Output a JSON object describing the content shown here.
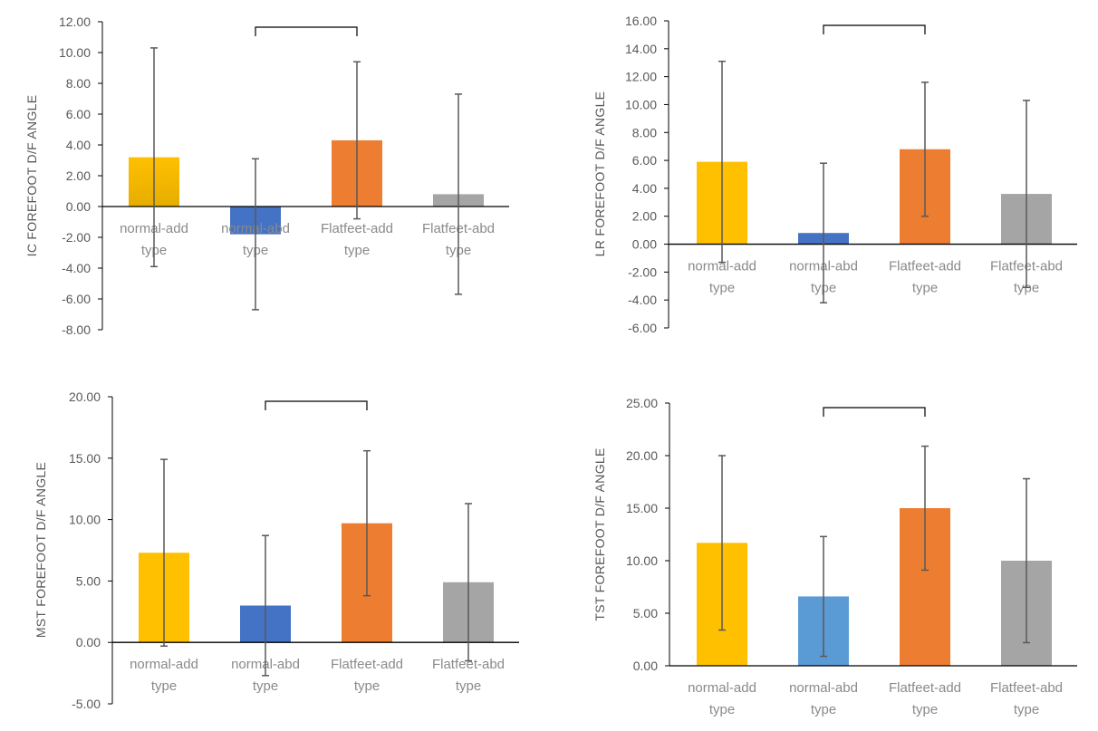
{
  "chart_data": [
    {
      "type": "bar",
      "ylabel": "IC FOREFOOT D/F ANGLE",
      "categories": [
        [
          "normal-add",
          "type"
        ],
        [
          "normal-abd",
          "type"
        ],
        [
          "Flatfeet-add",
          "type"
        ],
        [
          "Flatfeet-abd",
          "type"
        ]
      ],
      "values": [
        3.2,
        -1.8,
        4.3,
        0.8
      ],
      "errors": [
        7.1,
        4.9,
        5.1,
        6.5
      ],
      "ylim": [
        -8,
        12
      ],
      "ytick_step": 2,
      "tick_labels": [
        "-8.00",
        "-6.00",
        "-4.00",
        "-2.00",
        "0.00",
        "2.00",
        "4.00",
        "6.00",
        "8.00",
        "10.00",
        "12.00"
      ],
      "bracket": {
        "from": 1,
        "to": 2
      },
      "colors": [
        "#ffc000",
        "#4472c4",
        "#ed7d31",
        "#a5a5a5"
      ]
    },
    {
      "type": "bar",
      "ylabel": "LR FOREFOOT D/F ANGLE",
      "categories": [
        [
          "normal-add",
          "type"
        ],
        [
          "normal-abd",
          "type"
        ],
        [
          "Flatfeet-add",
          "type"
        ],
        [
          "Flatfeet-abd",
          "type"
        ]
      ],
      "values": [
        5.9,
        0.8,
        6.8,
        3.6
      ],
      "errors": [
        7.2,
        5.0,
        4.8,
        6.7
      ],
      "ylim": [
        -6,
        16
      ],
      "ytick_step": 2,
      "tick_labels": [
        "-6.00",
        "-4.00",
        "-2.00",
        "0.00",
        "2.00",
        "4.00",
        "6.00",
        "8.00",
        "10.00",
        "12.00",
        "14.00",
        "16.00"
      ],
      "bracket": {
        "from": 1,
        "to": 2
      },
      "colors": [
        "#ffc000",
        "#4472c4",
        "#ed7d31",
        "#a5a5a5"
      ]
    },
    {
      "type": "bar",
      "ylabel": "MST FOREFOOT D/F ANGLE",
      "categories": [
        [
          "normal-add",
          "type"
        ],
        [
          "normal-abd",
          "type"
        ],
        [
          "Flatfeet-add",
          "type"
        ],
        [
          "Flatfeet-abd",
          "type"
        ]
      ],
      "values": [
        7.3,
        3.0,
        9.7,
        4.9
      ],
      "errors": [
        7.6,
        5.7,
        5.9,
        6.4
      ],
      "ylim": [
        -5,
        20
      ],
      "ytick_step": 5,
      "tick_labels": [
        "-5.00",
        "0.00",
        "5.00",
        "10.00",
        "15.00",
        "20.00"
      ],
      "bracket": {
        "from": 1,
        "to": 2
      },
      "colors": [
        "#ffc000",
        "#4472c4",
        "#ed7d31",
        "#a5a5a5"
      ]
    },
    {
      "type": "bar",
      "ylabel": "TST FOREFOOT D/F ANGLE",
      "categories": [
        [
          "normal-add",
          "type"
        ],
        [
          "normal-abd",
          "type"
        ],
        [
          "Flatfeet-add",
          "type"
        ],
        [
          "Flatfeet-abd",
          "type"
        ]
      ],
      "values": [
        11.7,
        6.6,
        15.0,
        10.0
      ],
      "errors": [
        8.3,
        5.7,
        5.9,
        7.8
      ],
      "ylim": [
        0,
        25
      ],
      "ytick_step": 5,
      "tick_labels": [
        "0.00",
        "5.00",
        "10.00",
        "15.00",
        "20.00",
        "25.00"
      ],
      "bracket": {
        "from": 1,
        "to": 2
      },
      "colors": [
        "#ffc000",
        "#5b9bd5",
        "#ed7d31",
        "#a5a5a5"
      ]
    }
  ]
}
